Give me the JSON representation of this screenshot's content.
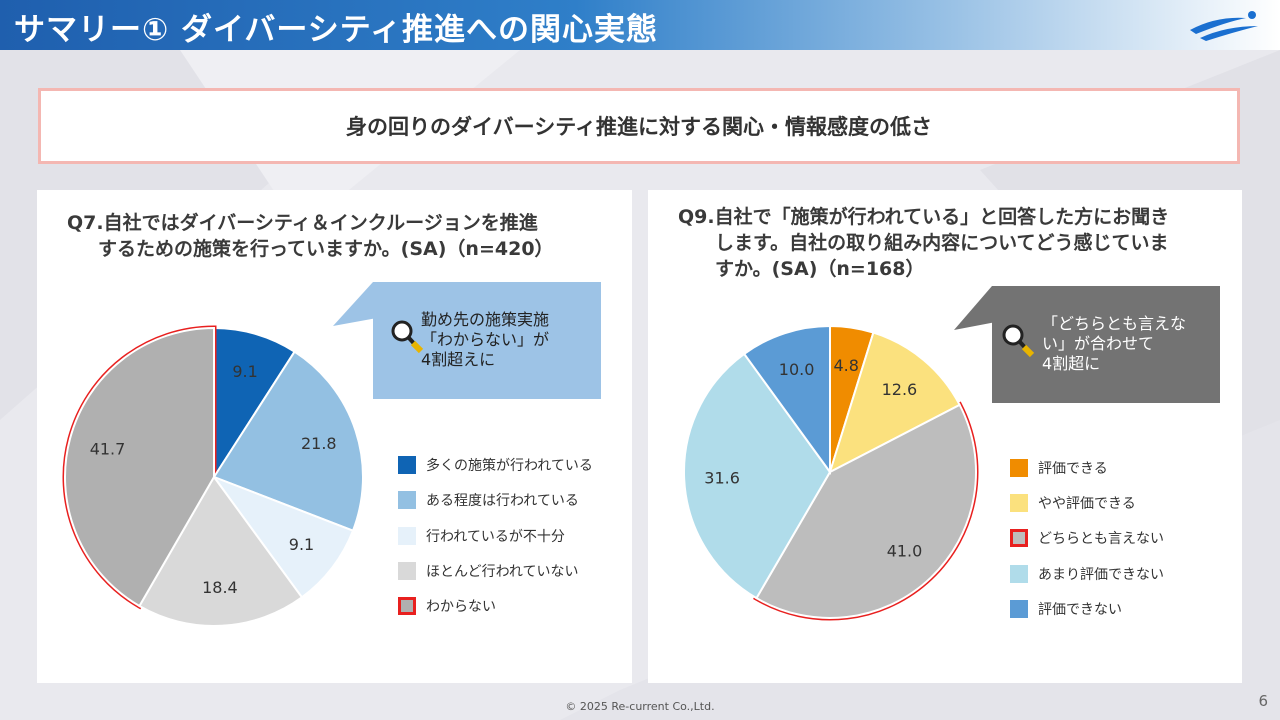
{
  "header": {
    "title": "サマリー① ダイバーシティ推進への関心実態"
  },
  "summary": {
    "text": "身の回りのダイバーシティ推進に対する関心・情報感度の低さ"
  },
  "left": {
    "question": {
      "line1": "Q7.自社ではダイバーシティ＆インクルージョンを推進",
      "line2": "するための施策を行っていますか。(SA)（n=420）"
    },
    "callout": {
      "line1": "勤め先の施策実施",
      "line2": "「わからない」が",
      "line3": "4割超えに"
    }
  },
  "right": {
    "question": {
      "line1": "Q9.自社で「施策が行われている」と回答した方にお聞き",
      "line2": "します。自社の取り組み内容についてどう感じていま",
      "line3": "すか。(SA)（n=168）"
    },
    "callout": {
      "line1": "「どちらとも言えな",
      "line2": "い」が合わせて",
      "line3": "4割超に"
    }
  },
  "chart_data": [
    {
      "type": "pie",
      "title": "Q7",
      "categories": [
        "多くの施策が行われている",
        "ある程度は行われている",
        "行われているが不十分",
        "ほとんど行われていない",
        "わからない"
      ],
      "values": [
        9.1,
        21.8,
        9.1,
        18.4,
        41.7
      ],
      "labels": [
        "9.1",
        "21.8",
        "9.1",
        "18.4",
        "41.7"
      ],
      "colors": [
        "#0f64b4",
        "#93c0e2",
        "#e6f1fa",
        "#d9d9d9",
        "#b0b0b0"
      ],
      "highlight": "わからない",
      "highlight_color": "#e8201f"
    },
    {
      "type": "pie",
      "title": "Q9",
      "categories": [
        "評価できる",
        "やや評価できる",
        "どちらとも言えない",
        "あまり評価できない",
        "評価できない"
      ],
      "values": [
        4.8,
        12.6,
        41.0,
        31.6,
        10.0
      ],
      "labels": [
        "4.8",
        "12.6",
        "41.0",
        "31.6",
        "10.0"
      ],
      "colors": [
        "#f08c00",
        "#fbe17e",
        "#bdbdbd",
        "#b0dcea",
        "#5b9bd5"
      ],
      "highlight": "どちらとも言えない",
      "highlight_color": "#e8201f"
    }
  ],
  "footer": {
    "copyright": "© 2025 Re-current Co.,Ltd.",
    "page": "6"
  }
}
